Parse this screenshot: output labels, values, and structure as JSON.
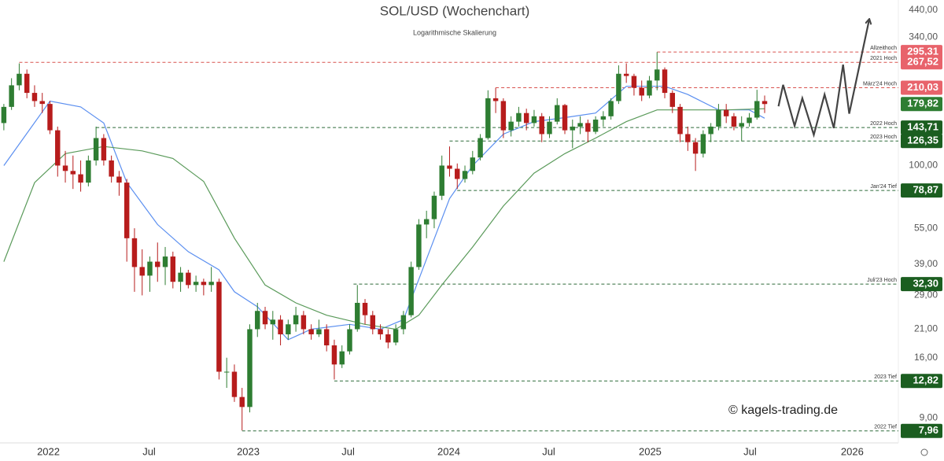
{
  "chart_data": {
    "type": "candlestick",
    "title": "SOL/USD (Wochenchart)",
    "subtitle": "Logarithmische Skalierung",
    "watermark": "© kagels-trading.de",
    "log_scale": true,
    "ylim": [
      7.1,
      485
    ],
    "yticks": [
      {
        "value": 440,
        "label": "440,00"
      },
      {
        "value": 340,
        "label": "340,00"
      },
      {
        "value": 100,
        "label": "100,00"
      },
      {
        "value": 55,
        "label": "55,00"
      },
      {
        "value": 39,
        "label": "39,00"
      },
      {
        "value": 29,
        "label": "29,00"
      },
      {
        "value": 21,
        "label": "21,00"
      },
      {
        "value": 16,
        "label": "16,00"
      },
      {
        "value": 9,
        "label": "9,00"
      }
    ],
    "xlim": [
      -0.5,
      116.4
    ],
    "xticks": [
      {
        "value": 5.8,
        "label": "2022"
      },
      {
        "value": 18.9,
        "label": "Jul"
      },
      {
        "value": 31.8,
        "label": "2023"
      },
      {
        "value": 44.8,
        "label": "Jul"
      },
      {
        "value": 57.9,
        "label": "2024"
      },
      {
        "value": 70.9,
        "label": "Jul"
      },
      {
        "value": 84.1,
        "label": "2025"
      },
      {
        "value": 97.1,
        "label": "Jul"
      },
      {
        "value": 110.4,
        "label": "2026"
      }
    ],
    "candles": {
      "up_color": "#2e7d32",
      "down_color": "#b71c1c",
      "ohlc": [
        [
          150,
          180,
          140,
          175
        ],
        [
          175,
          230,
          170,
          215
        ],
        [
          215,
          265,
          205,
          240
        ],
        [
          240,
          250,
          190,
          200
        ],
        [
          200,
          215,
          175,
          185
        ],
        [
          185,
          200,
          165,
          180
        ],
        [
          180,
          185,
          135,
          140
        ],
        [
          140,
          145,
          90,
          100
        ],
        [
          100,
          115,
          85,
          95
        ],
        [
          95,
          110,
          80,
          92
        ],
        [
          92,
          105,
          78,
          85
        ],
        [
          85,
          110,
          82,
          105
        ],
        [
          105,
          145,
          100,
          130
        ],
        [
          130,
          135,
          100,
          105
        ],
        [
          105,
          110,
          85,
          90
        ],
        [
          90,
          95,
          75,
          85
        ],
        [
          85,
          88,
          40,
          50
        ],
        [
          50,
          55,
          30,
          38
        ],
        [
          38,
          45,
          29,
          35
        ],
        [
          35,
          42,
          30,
          40
        ],
        [
          40,
          48,
          33,
          38
        ],
        [
          38,
          46,
          32,
          42
        ],
        [
          42,
          44,
          31,
          33
        ],
        [
          33,
          38,
          30,
          36
        ],
        [
          36,
          37,
          31,
          32
        ],
        [
          32,
          35,
          30,
          33
        ],
        [
          33,
          34,
          29,
          32
        ],
        [
          32,
          38,
          30,
          33
        ],
        [
          33,
          34,
          13,
          14
        ],
        [
          14,
          16,
          12,
          14
        ],
        [
          14,
          15,
          10.5,
          11
        ],
        [
          11,
          12,
          8,
          10
        ],
        [
          10,
          22,
          9.5,
          21
        ],
        [
          21,
          27,
          19.5,
          25
        ],
        [
          25,
          26,
          21,
          22
        ],
        [
          22,
          25,
          19,
          23
        ],
        [
          23,
          24,
          18,
          20
        ],
        [
          20,
          23,
          19,
          22
        ],
        [
          22,
          26,
          20.5,
          24
        ],
        [
          24,
          25,
          20,
          21
        ],
        [
          21,
          22,
          19,
          20
        ],
        [
          20,
          23,
          19.5,
          21
        ],
        [
          21,
          22,
          17,
          18
        ],
        [
          18,
          19,
          13,
          15
        ],
        [
          15,
          18,
          14.5,
          17
        ],
        [
          17,
          22,
          16.5,
          21
        ],
        [
          21,
          32,
          20.5,
          27
        ],
        [
          27,
          28,
          22,
          24
        ],
        [
          24,
          25,
          20,
          21
        ],
        [
          21,
          22,
          19,
          20
        ],
        [
          20,
          21,
          17.5,
          18.5
        ],
        [
          18.5,
          22,
          18,
          21
        ],
        [
          21,
          25,
          20,
          24
        ],
        [
          24,
          40,
          23.5,
          38
        ],
        [
          38,
          60,
          37,
          57
        ],
        [
          57,
          65,
          50,
          60
        ],
        [
          60,
          78,
          55,
          75
        ],
        [
          75,
          110,
          72,
          100
        ],
        [
          100,
          120,
          90,
          97
        ],
        [
          97,
          102,
          80,
          88
        ],
        [
          88,
          100,
          85,
          95
        ],
        [
          95,
          115,
          92,
          108
        ],
        [
          108,
          135,
          105,
          130
        ],
        [
          130,
          205,
          128,
          190
        ],
        [
          190,
          210,
          165,
          185
        ],
        [
          185,
          190,
          130,
          140
        ],
        [
          140,
          160,
          132,
          152
        ],
        [
          152,
          175,
          145,
          165
        ],
        [
          165,
          172,
          140,
          150
        ],
        [
          150,
          170,
          145,
          160
        ],
        [
          160,
          165,
          125,
          135
        ],
        [
          135,
          160,
          130,
          152
        ],
        [
          152,
          190,
          148,
          178
        ],
        [
          178,
          180,
          135,
          140
        ],
        [
          140,
          155,
          118,
          145
        ],
        [
          145,
          160,
          135,
          150
        ],
        [
          150,
          155,
          125,
          138
        ],
        [
          138,
          160,
          135,
          155
        ],
        [
          155,
          168,
          145,
          160
        ],
        [
          160,
          190,
          155,
          185
        ],
        [
          185,
          260,
          180,
          240
        ],
        [
          240,
          265,
          220,
          235
        ],
        [
          235,
          240,
          195,
          210
        ],
        [
          210,
          225,
          185,
          195
        ],
        [
          195,
          235,
          190,
          225
        ],
        [
          225,
          295,
          205,
          250
        ],
        [
          250,
          255,
          190,
          200
        ],
        [
          200,
          205,
          165,
          175
        ],
        [
          175,
          180,
          125,
          135
        ],
        [
          135,
          145,
          115,
          125
        ],
        [
          125,
          130,
          95,
          112
        ],
        [
          112,
          140,
          108,
          135
        ],
        [
          135,
          150,
          125,
          145
        ],
        [
          145,
          180,
          140,
          170
        ],
        [
          170,
          180,
          150,
          160
        ],
        [
          160,
          165,
          140,
          145
        ],
        [
          145,
          160,
          126,
          150
        ],
        [
          150,
          165,
          145,
          158
        ],
        [
          158,
          206,
          155,
          185
        ],
        [
          185,
          195,
          165,
          179.82
        ]
      ]
    },
    "moving_averages": [
      {
        "color": "#5b8ff0",
        "x": [
          0,
          6,
          10,
          13,
          16,
          20,
          24,
          28,
          30,
          33,
          37,
          40,
          45,
          49,
          52,
          55,
          58,
          61,
          65,
          69,
          73,
          77,
          81,
          86,
          89,
          93,
          97,
          99
        ],
        "values": [
          100,
          185,
          175,
          150,
          85,
          57,
          44,
          37,
          30,
          26,
          19,
          21,
          22,
          21,
          23,
          41,
          73,
          100,
          135,
          152,
          158,
          165,
          213,
          213,
          197,
          170,
          170,
          157
        ]
      },
      {
        "color": "#5a9a5a",
        "x": [
          0,
          4,
          8,
          13,
          18,
          22,
          26,
          30,
          34,
          38,
          42,
          47,
          51,
          54,
          57,
          61,
          65,
          69,
          73,
          77,
          81,
          85,
          90,
          94,
          99
        ],
        "values": [
          40,
          85,
          112,
          120,
          115,
          107,
          86,
          50,
          32,
          27,
          24,
          22,
          21,
          24,
          32,
          46,
          68,
          93,
          112,
          130,
          152,
          170,
          170,
          170,
          172
        ]
      }
    ],
    "projection": {
      "color": "#444444",
      "x": [
        100.8,
        101.4,
        102.9,
        103.9,
        105.4,
        106.8,
        108.0,
        109.2,
        110.0,
        112.6
      ],
      "values": [
        176,
        216,
        146,
        190,
        134,
        197,
        143,
        262,
        164,
        402
      ]
    },
    "levels": [
      {
        "name": "Allzeithoch",
        "value": 295.31,
        "label": "295,31",
        "start": 85,
        "color": "#e8636b",
        "line_color": "#d9534f"
      },
      {
        "name": "2021 Hoch",
        "value": 267.52,
        "label": "267,52",
        "start": 2,
        "color": "#e8636b",
        "line_color": "#d9534f"
      },
      {
        "name": "März'24 Hoch",
        "value": 210.03,
        "label": "210,03",
        "start": 64,
        "color": "#e8636b",
        "line_color": "#d9534f"
      },
      {
        "value": 179.82,
        "label": "179,82",
        "color": "#2e7d32"
      },
      {
        "name": "2022 Hoch",
        "value": 143.71,
        "label": "143,71",
        "start": 12,
        "color": "#1b5e20",
        "line_color": "#2e6b3a"
      },
      {
        "name": "2023 Hoch",
        "value": 126.35,
        "label": "126,35",
        "start": 58,
        "color": "#1b5e20",
        "line_color": "#2e6b3a"
      },
      {
        "name": "Jan'24 Tief",
        "value": 78.87,
        "label": "78,87",
        "start": 59,
        "color": "#1b5e20",
        "line_color": "#2e6b3a"
      },
      {
        "name": "Juli'23 Hoch",
        "value": 32.3,
        "label": "32,30",
        "start": 45.5,
        "color": "#1b5e20",
        "line_color": "#2e6b3a"
      },
      {
        "name": "2023 Tief",
        "value": 12.82,
        "label": "12,82",
        "start": 43,
        "color": "#1b5e20",
        "line_color": "#2e6b3a"
      },
      {
        "name": "2022 Tief",
        "value": 7.96,
        "label": "7,96",
        "start": 31,
        "color": "#1b5e20",
        "line_color": "#2e6b3a"
      }
    ]
  }
}
